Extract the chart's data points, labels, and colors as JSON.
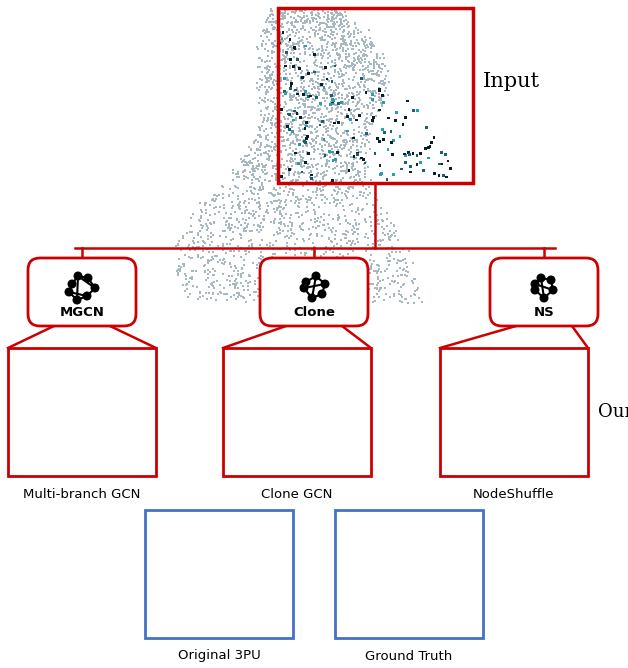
{
  "bg_color": "#ffffff",
  "red_color": "#cc0000",
  "blue_border_color": "#4472c4",
  "light_gray": "#a8b8c0",
  "input_label": "Input",
  "ours_label": "Ours",
  "method_labels": [
    "Multi-branch GCN",
    "Clone GCN",
    "NodeShuffle"
  ],
  "bottom_labels": [
    "Original 3PU",
    "Ground Truth"
  ],
  "node_labels": [
    "MGCN",
    "Clone",
    "NS"
  ],
  "colors_dark": [
    "#0a2a35",
    "#0d3040",
    "#0a1e28"
  ],
  "colors_mid": [
    "#1a6070",
    "#1e7080",
    "#156070"
  ],
  "colors_bright": [
    "#2a9db5",
    "#30aac5",
    "#25a0b0"
  ]
}
